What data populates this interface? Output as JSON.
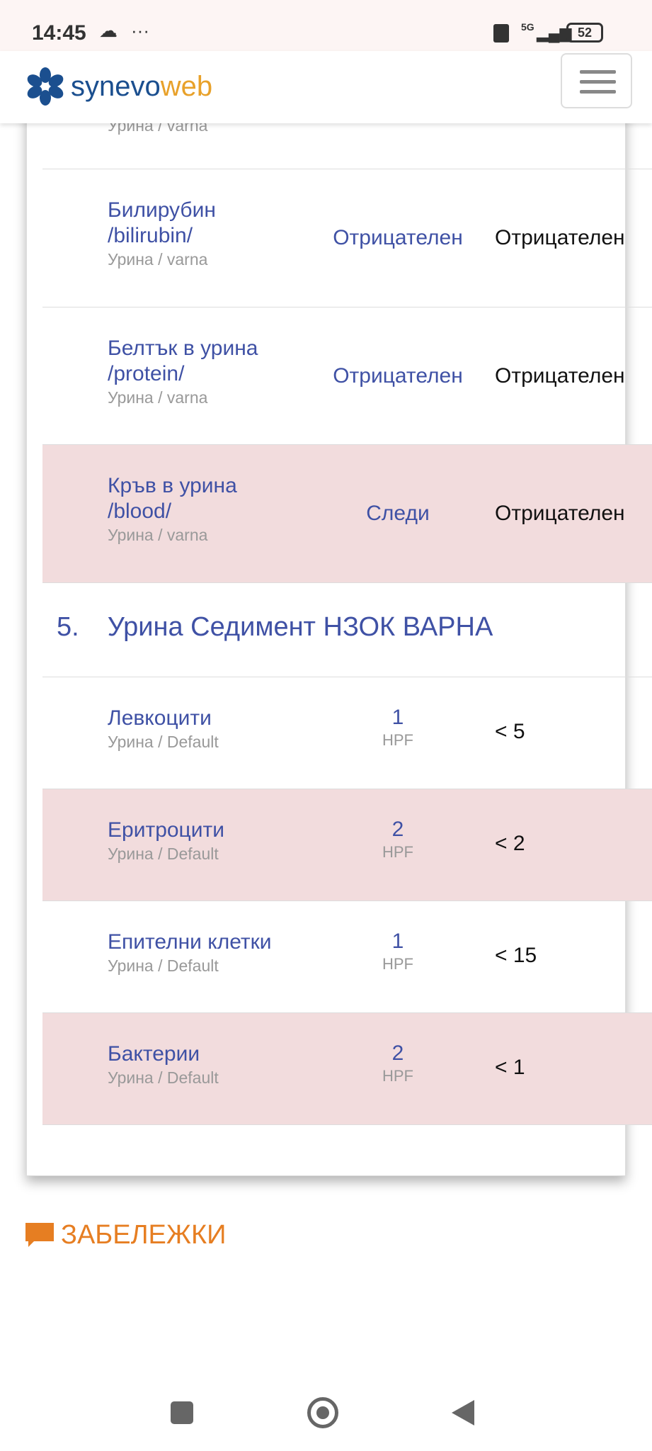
{
  "status_bar": {
    "time": "14:45",
    "battery": "52",
    "network": "5G"
  },
  "header": {
    "logo_main": "synevo",
    "logo_accent": "web"
  },
  "rows_top": [
    {
      "name": "",
      "sub": "Урина / varna",
      "value": "",
      "ref": ""
    },
    {
      "name": "Билирубин /bilirubin/",
      "sub": "Урина / varna",
      "value": "Отрицателен",
      "ref": "Отрицателен",
      "flag": false
    },
    {
      "name": "Белтък в урина /protein/",
      "sub": "Урина / varna",
      "value": "Отрицателен",
      "ref": "Отрицателен",
      "flag": false
    },
    {
      "name": "Кръв в урина /blood/",
      "sub": "Урина / varna",
      "value": "Следи",
      "ref": "Отрицателен",
      "flag": true
    }
  ],
  "section": {
    "number": "5.",
    "title": "Урина Седимент НЗОК ВАРНА"
  },
  "rows_sed": [
    {
      "name": "Левкоцити",
      "sub": "Урина / Default",
      "value": "1",
      "unit": "HPF",
      "ref": "< 5",
      "flag": false
    },
    {
      "name": "Еритроцити",
      "sub": "Урина / Default",
      "value": "2",
      "unit": "HPF",
      "ref": "< 2",
      "flag": true
    },
    {
      "name": "Епителни клетки",
      "sub": "Урина / Default",
      "value": "1",
      "unit": "HPF",
      "ref": "< 15",
      "flag": false
    },
    {
      "name": "Бактерии",
      "sub": "Урина / Default",
      "value": "2",
      "unit": "HPF",
      "ref": "< 1",
      "flag": true
    }
  ],
  "notes": {
    "label": "ЗАБЕЛЕЖКИ"
  },
  "colors": {
    "accent": "#3f51a5",
    "flag_row": "#f2dcdd",
    "notes": "#e67e22"
  }
}
